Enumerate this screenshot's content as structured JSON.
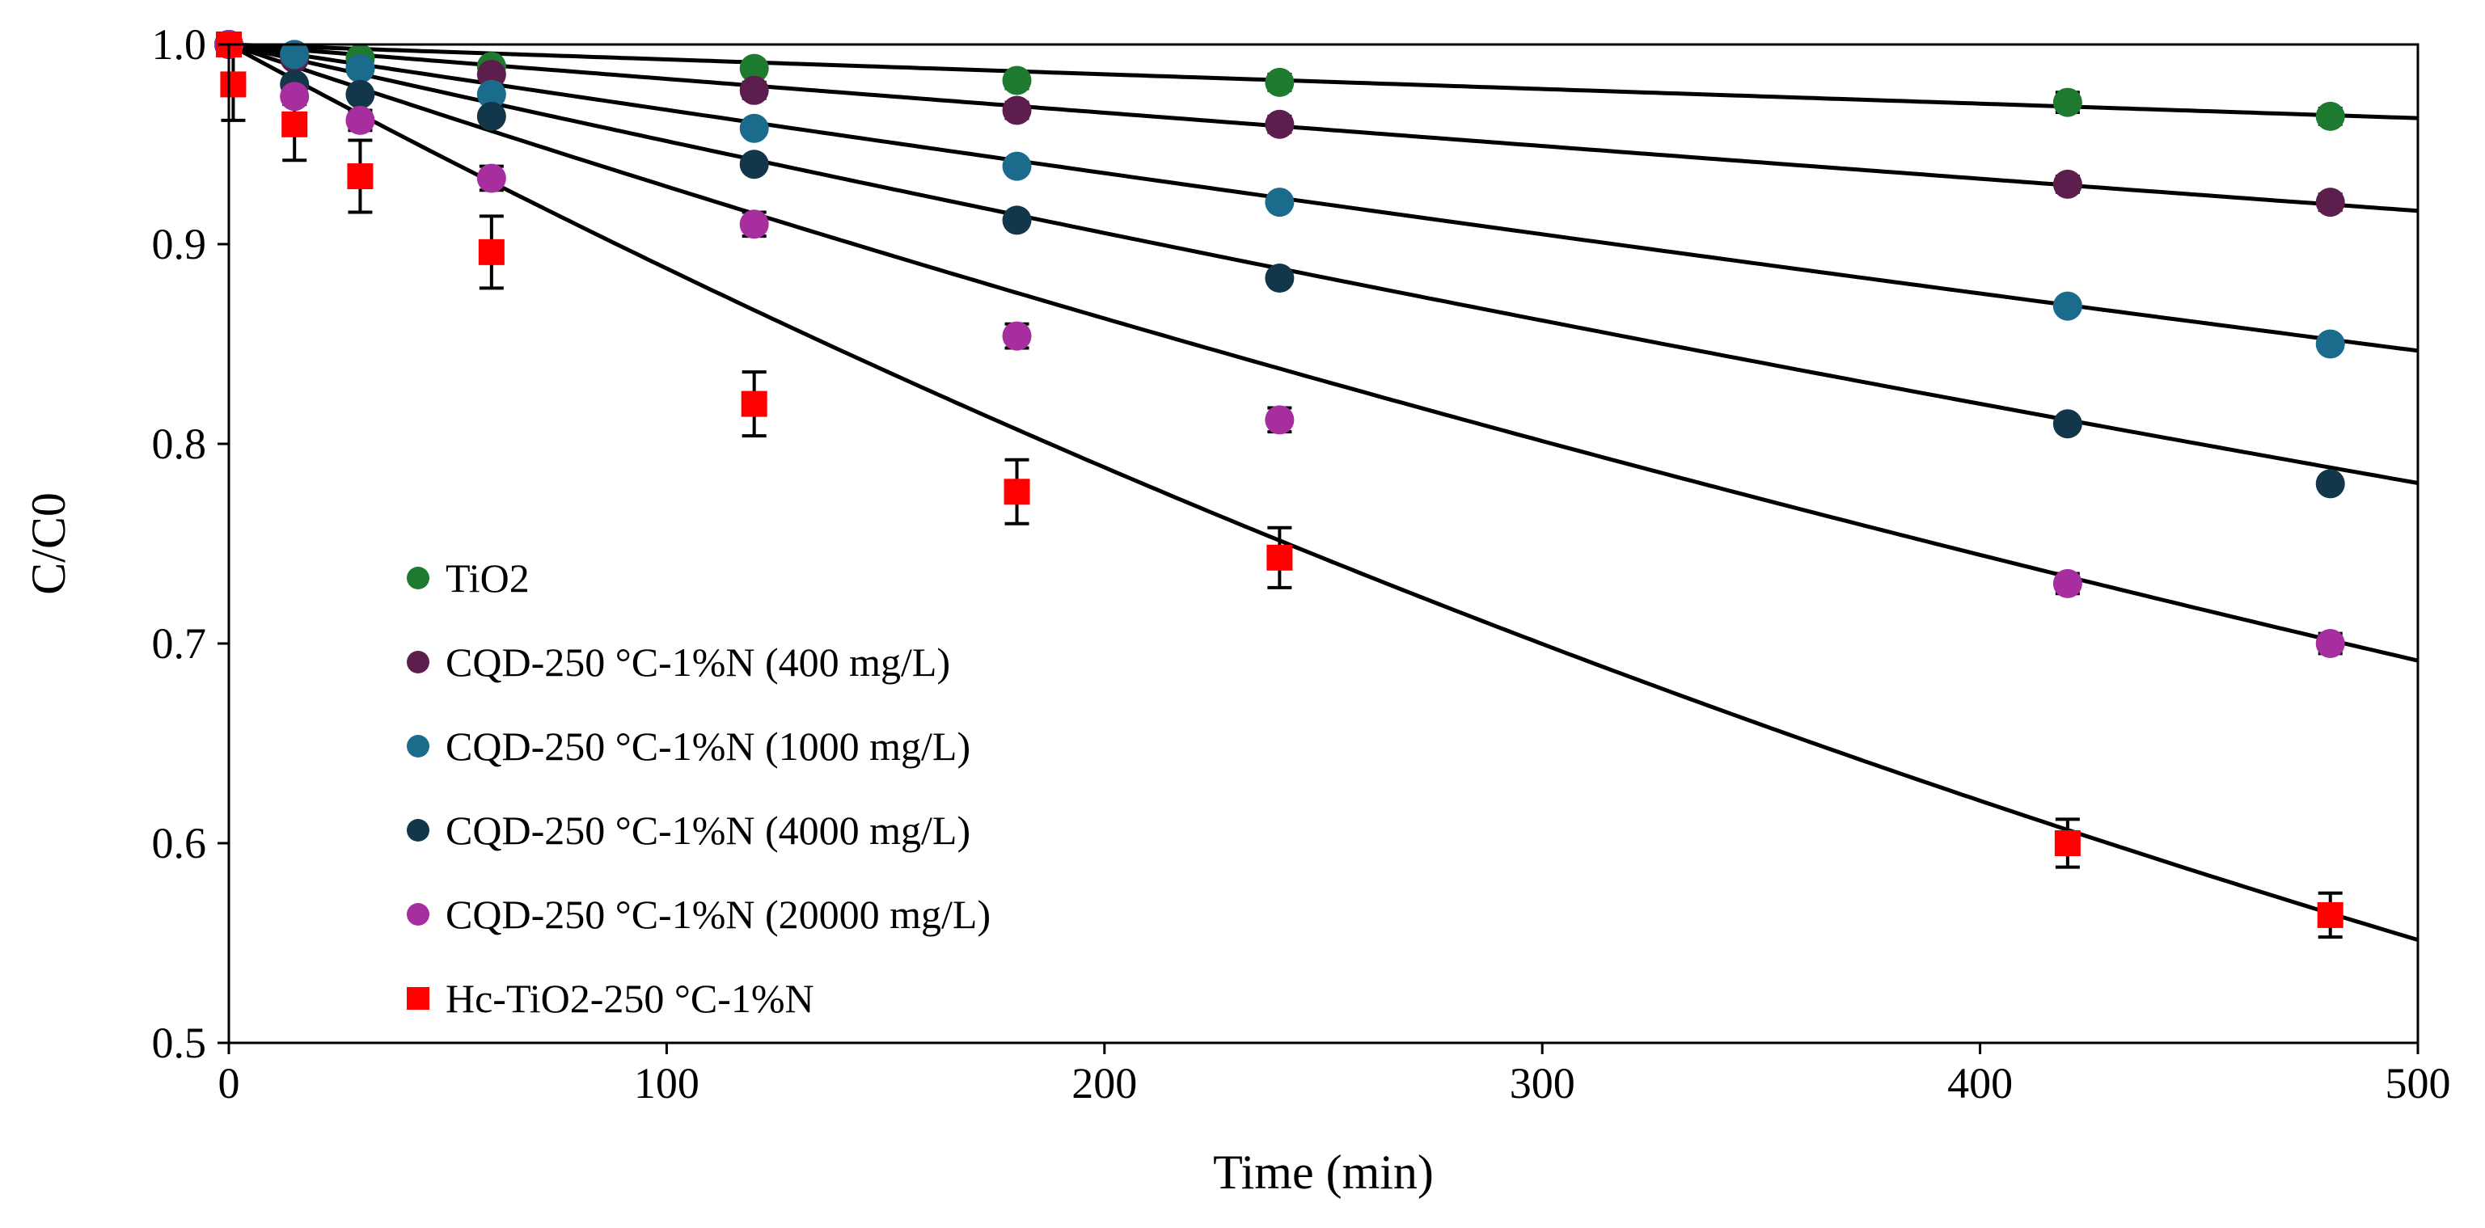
{
  "chart_data": {
    "type": "scatter",
    "title": "",
    "xlabel": "Time (min)",
    "ylabel": "C/C0",
    "xlim": [
      0,
      500
    ],
    "ylim": [
      0.5,
      1.0
    ],
    "xticks": [
      0,
      100,
      200,
      300,
      400,
      500
    ],
    "yticks": [
      0.5,
      0.6,
      0.7,
      0.8,
      0.9,
      1.0
    ],
    "xtick_labels": [
      "0",
      "100",
      "200",
      "300",
      "400",
      "500"
    ],
    "ytick_labels": [
      "0.5",
      "0.6",
      "0.7",
      "0.8",
      "0.9",
      "1.0"
    ],
    "grid": false,
    "legend_position": "center-left",
    "fit_curve_color": "#000000",
    "series": [
      {
        "name": "TiO2",
        "marker": "circle",
        "color": "#1e7a2e",
        "x": [
          0,
          15,
          30,
          60,
          120,
          180,
          240,
          420,
          480
        ],
        "y": [
          1.0,
          0.995,
          0.993,
          0.989,
          0.988,
          0.982,
          0.981,
          0.971,
          0.964
        ],
        "err": [
          0.002,
          0.002,
          0.002,
          0.003,
          0.003,
          0.004,
          0.004,
          0.005,
          0.004
        ],
        "fit_k": 7.52e-05
      },
      {
        "name": "CQD-250 °C-1%N (400 mg/L)",
        "marker": "circle",
        "color": "#5c1f4d",
        "x": [
          0,
          15,
          30,
          60,
          120,
          180,
          240,
          420,
          480
        ],
        "y": [
          1.0,
          0.993,
          0.988,
          0.985,
          0.977,
          0.967,
          0.96,
          0.93,
          0.921
        ],
        "err": [
          0.002,
          0.002,
          0.003,
          0.003,
          0.004,
          0.004,
          0.004,
          0.004,
          0.004
        ],
        "fit_k": 0.000174
      },
      {
        "name": "CQD-250 °C-1%N (1000 mg/L)",
        "marker": "circle",
        "color": "#1b6b8c",
        "x": [
          0,
          15,
          30,
          60,
          120,
          180,
          240,
          420,
          480
        ],
        "y": [
          1.0,
          0.995,
          0.988,
          0.975,
          0.958,
          0.939,
          0.921,
          0.869,
          0.85
        ],
        "err": [
          0.002,
          0.002,
          0.003,
          0.003,
          0.003,
          0.003,
          0.003,
          0.003,
          0.003
        ],
        "fit_k": 0.000333
      },
      {
        "name": "CQD-250 °C-1%N (4000 mg/L)",
        "marker": "circle",
        "color": "#12374a",
        "x": [
          0,
          15,
          30,
          60,
          120,
          180,
          240,
          420,
          480
        ],
        "y": [
          1.0,
          0.98,
          0.975,
          0.964,
          0.94,
          0.912,
          0.883,
          0.81,
          0.78
        ],
        "err": [
          0.002,
          0.002,
          0.003,
          0.003,
          0.003,
          0.003,
          0.003,
          0.003,
          0.003
        ],
        "fit_k": 0.000496
      },
      {
        "name": "CQD-250 °C-1%N (20000 mg/L)",
        "marker": "circle",
        "color": "#a62e9e",
        "x": [
          0,
          15,
          30,
          60,
          120,
          180,
          240,
          420,
          480
        ],
        "y": [
          1.0,
          0.974,
          0.962,
          0.933,
          0.91,
          0.854,
          0.812,
          0.73,
          0.7
        ],
        "err": [
          0.003,
          0.004,
          0.005,
          0.006,
          0.006,
          0.006,
          0.006,
          0.005,
          0.005
        ],
        "fit_k": 0.000738
      },
      {
        "name": "Hc-TiO2-250 °C-1%N",
        "marker": "square",
        "color": "#ff0000",
        "x": [
          0,
          1,
          15,
          30,
          60,
          120,
          180,
          240,
          420,
          480
        ],
        "y": [
          1.0,
          0.98,
          0.96,
          0.934,
          0.896,
          0.82,
          0.776,
          0.743,
          0.6,
          0.564
        ],
        "err": [
          0.004,
          0.018,
          0.018,
          0.018,
          0.018,
          0.016,
          0.016,
          0.015,
          0.012,
          0.011
        ],
        "fit_k": 0.00119
      }
    ]
  }
}
